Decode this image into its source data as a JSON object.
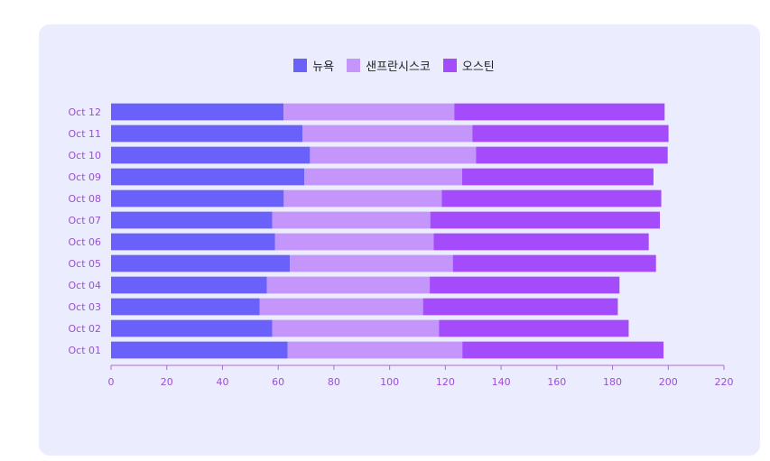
{
  "colors": {
    "background_card": "#ebecfd",
    "axis": "#b06ad6",
    "tick_text": "#9b4fd6"
  },
  "chart_data": {
    "type": "bar",
    "orientation": "horizontal",
    "stacked": true,
    "categories": [
      "Oct 01",
      "Oct 02",
      "Oct 03",
      "Oct 04",
      "Oct 05",
      "Oct 06",
      "Oct 07",
      "Oct 08",
      "Oct 09",
      "Oct 10",
      "Oct 11",
      "Oct 12"
    ],
    "series": [
      {
        "name": "뉴욕",
        "color": "#6a61fb",
        "values": [
          63.4,
          57.9,
          53.3,
          55.9,
          64.2,
          58.9,
          57.9,
          62.0,
          69.4,
          71.4,
          68.7,
          61.9
        ]
      },
      {
        "name": "샌프란시스코",
        "color": "#c495fa",
        "values": [
          62.7,
          59.8,
          58.7,
          58.5,
          58.5,
          56.9,
          56.7,
          56.7,
          56.6,
          59.6,
          61.0,
          61.3
        ]
      },
      {
        "name": "오스틴",
        "color": "#a44bfc",
        "values": [
          72.2,
          68.1,
          69.9,
          68.1,
          72.9,
          77.2,
          82.4,
          78.8,
          68.7,
          68.8,
          70.4,
          75.5
        ]
      }
    ],
    "xlim": [
      0,
      220
    ],
    "xticks": [
      "0",
      "20",
      "40",
      "60",
      "80",
      "100",
      "120",
      "140",
      "160",
      "180",
      "200",
      "220"
    ],
    "grid": false,
    "legend_position": "top"
  }
}
